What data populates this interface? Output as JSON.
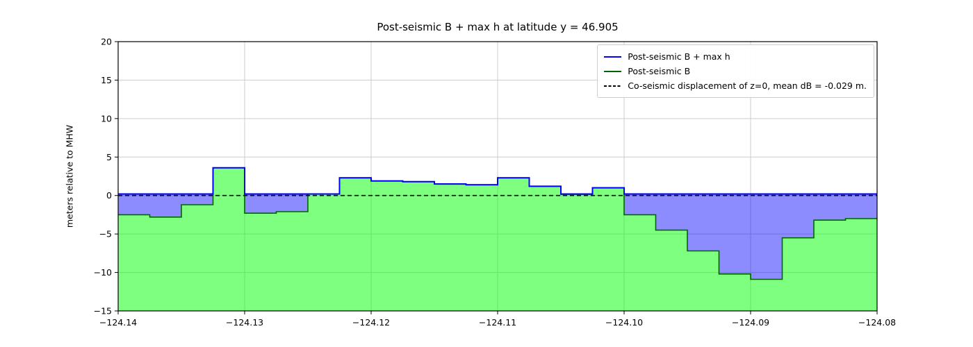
{
  "chart_data": {
    "type": "area",
    "title": "Post-seismic B + max h at latitude y = 46.905",
    "xlabel": "",
    "ylabel": "meters relative to MHW",
    "xlim": [
      -124.14,
      -124.08
    ],
    "ylim": [
      -15,
      20
    ],
    "xticks": [
      -124.14,
      -124.13,
      -124.12,
      -124.11,
      -124.1,
      -124.09,
      -124.08
    ],
    "xtick_labels": [
      "−124.14",
      "−124.13",
      "−124.12",
      "−124.11",
      "−124.10",
      "−124.09",
      "−124.08"
    ],
    "yticks": [
      -15,
      -10,
      -5,
      0,
      5,
      10,
      15,
      20
    ],
    "ytick_labels": [
      "−15",
      "−10",
      "−5",
      "0",
      "5",
      "10",
      "15",
      "20"
    ],
    "grid": true,
    "legend_position": "upper right",
    "coseismic_z0": 0,
    "mean_dB_m": -0.029,
    "step_edges": [
      -124.14,
      -124.1375,
      -124.135,
      -124.1325,
      -124.13,
      -124.1275,
      -124.125,
      -124.1225,
      -124.12,
      -124.1175,
      -124.115,
      -124.1125,
      -124.11,
      -124.1075,
      -124.105,
      -124.1025,
      -124.1,
      -124.0975,
      -124.095,
      -124.0925,
      -124.09,
      -124.0875,
      -124.085,
      -124.0825,
      -124.08
    ],
    "series": [
      {
        "name": "Post-seismic B",
        "type": "step",
        "values": [
          -2.5,
          -2.8,
          -1.2,
          3.6,
          -2.3,
          -2.1,
          0.2,
          2.3,
          1.9,
          1.8,
          1.5,
          1.4,
          2.3,
          1.2,
          0.15,
          1.0,
          -2.5,
          -4.5,
          -7.2,
          -10.2,
          -10.9,
          -5.5,
          -3.2,
          -3.0
        ]
      },
      {
        "name": "Post-seismic B + max h",
        "type": "step",
        "values": [
          0.2,
          0.2,
          0.2,
          3.6,
          0.2,
          0.2,
          0.2,
          2.3,
          1.9,
          1.8,
          1.5,
          1.4,
          2.3,
          1.2,
          0.2,
          1.0,
          0.2,
          0.2,
          0.2,
          0.2,
          0.2,
          0.2,
          0.2,
          0.2
        ]
      },
      {
        "name": "Co-seismic displacement of z=0",
        "type": "hline",
        "y": 0
      }
    ],
    "legend": [
      {
        "label": "Post-seismic B + max h",
        "color": "#0000ff",
        "dash": "none"
      },
      {
        "label": "Post-seismic B",
        "color": "#006400",
        "dash": "none"
      },
      {
        "label": "Co-seismic displacement of z=0, mean dB = -0.029 m.",
        "color": "#000000",
        "dash": "4,2.5"
      }
    ],
    "colors": {
      "grid": "#cccccc",
      "land_fill": "rgba(0,255,0,0.5)",
      "land_line": "#006400",
      "water_fill": "rgba(0,0,255,0.45)",
      "water_line": "#0000ff",
      "zero_line": "#000000",
      "spine": "#000000"
    }
  }
}
